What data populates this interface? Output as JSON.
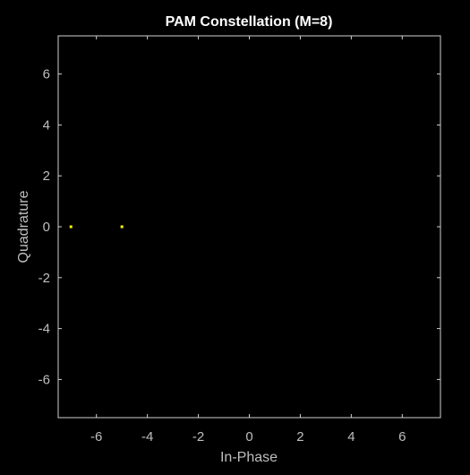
{
  "chart_data": {
    "type": "scatter",
    "title": "PAM Constellation (M=8)",
    "xlabel": "In-Phase",
    "ylabel": "Quadrature",
    "xlim": [
      -7.5,
      7.5
    ],
    "ylim": [
      -7.5,
      7.5
    ],
    "xticks": [
      -6,
      -4,
      -2,
      0,
      2,
      4,
      6
    ],
    "yticks": [
      -6,
      -4,
      -2,
      0,
      2,
      4,
      6
    ],
    "grid": false,
    "series": [
      {
        "points": [
          {
            "x": -7,
            "y": 0
          },
          {
            "x": -5,
            "y": 0
          }
        ]
      }
    ]
  },
  "colors": {
    "background": "#000000",
    "axes_background": "#000000",
    "axes_line": "#d0d0d0",
    "tick_label": "#bfbfbf",
    "title": "#ffffff",
    "marker": "#ffff00"
  }
}
